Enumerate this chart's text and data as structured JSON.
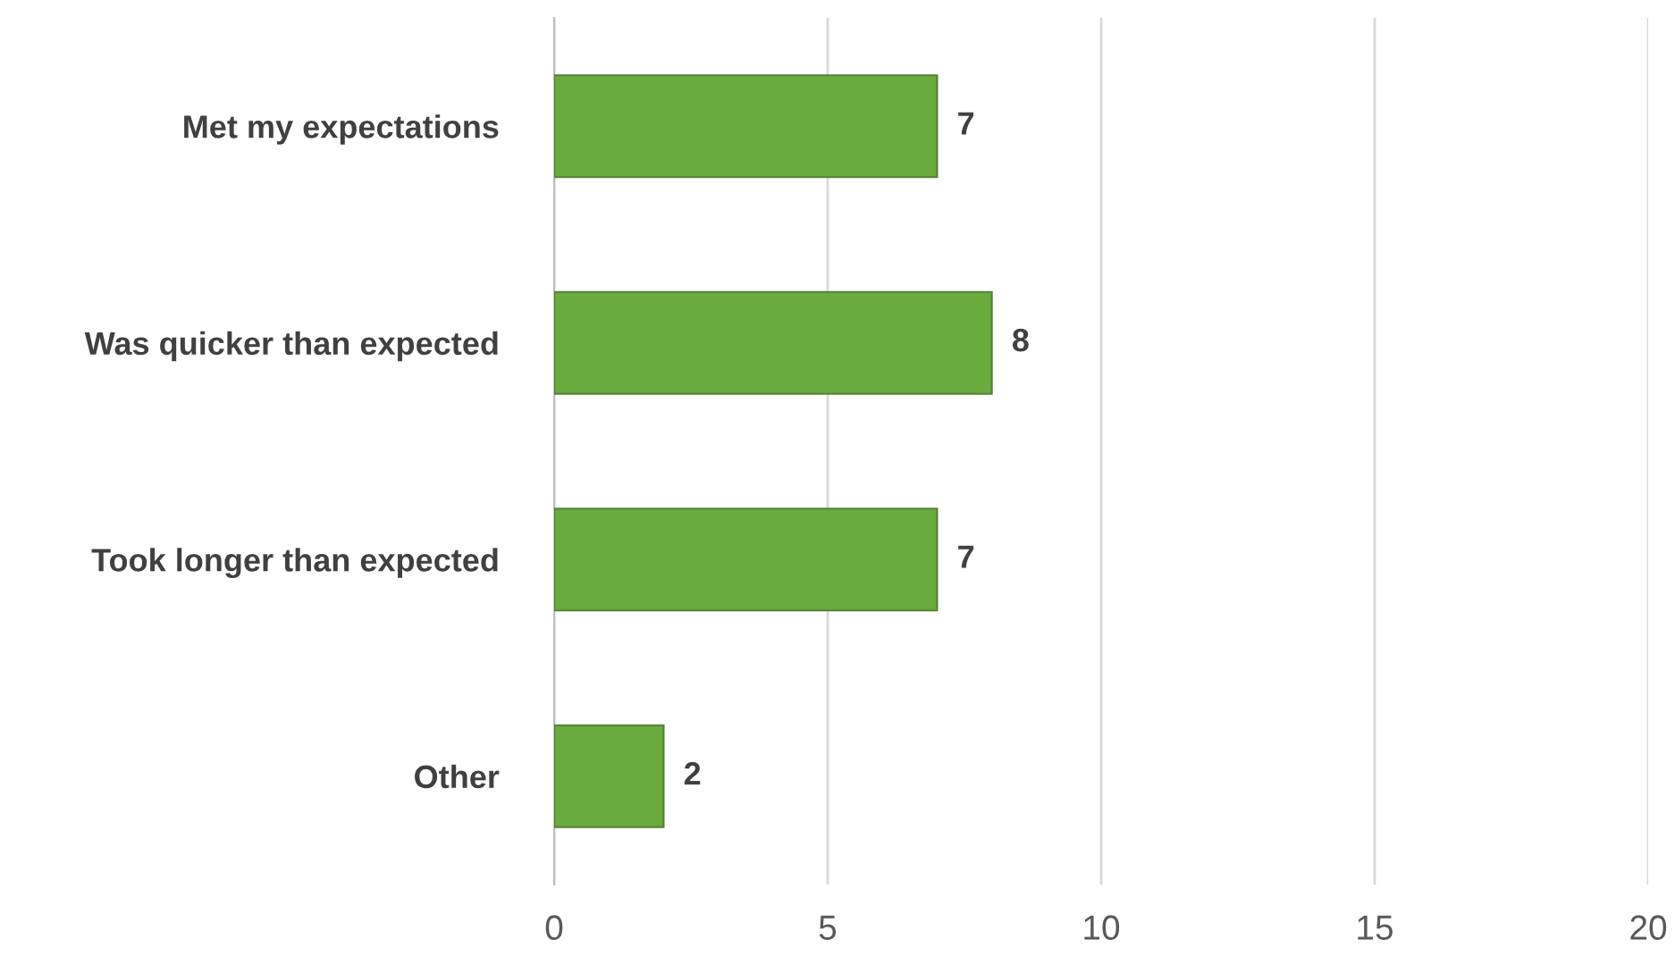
{
  "chart_data": {
    "type": "bar",
    "orientation": "horizontal",
    "categories": [
      "Met my expectations",
      "Was quicker than expected",
      "Took longer than expected",
      "Other"
    ],
    "values": [
      7,
      8,
      7,
      2
    ],
    "color": "#6aab3d",
    "xlim": [
      0,
      20
    ],
    "xticks": [
      0,
      5,
      10,
      15,
      20
    ],
    "grid": "x",
    "data_labels": true
  }
}
